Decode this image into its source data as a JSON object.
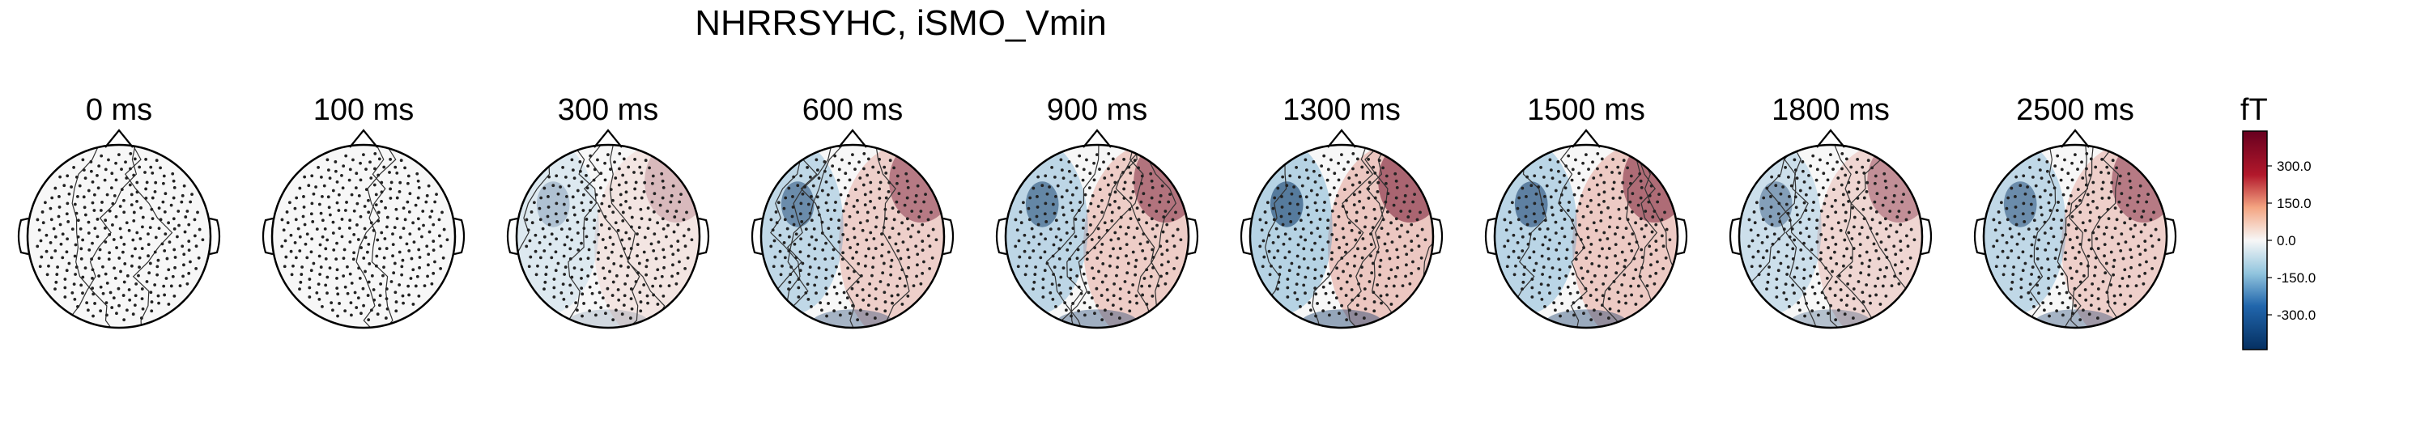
{
  "title": "NHRRSYHC, iSMO_Vmin",
  "panels": [
    {
      "label": "0 ms",
      "intensity": 0.02,
      "contours": 3
    },
    {
      "label": "100 ms",
      "intensity": 0.01,
      "contours": 2
    },
    {
      "label": "300 ms",
      "intensity": 0.35,
      "contours": 4
    },
    {
      "label": "600 ms",
      "intensity": 0.75,
      "contours": 5
    },
    {
      "label": "900 ms",
      "intensity": 0.8,
      "contours": 5
    },
    {
      "label": "1300 ms",
      "intensity": 0.9,
      "contours": 5
    },
    {
      "label": "1500 ms",
      "intensity": 0.85,
      "contours": 5
    },
    {
      "label": "1800 ms",
      "intensity": 0.6,
      "contours": 5
    },
    {
      "label": "2500 ms",
      "intensity": 0.75,
      "contours": 4
    }
  ],
  "colorbar": {
    "unit": "fT",
    "ticks": [
      "300.0",
      "150.0",
      "0.0",
      "-150.0",
      "-300.0"
    ],
    "colors": {
      "max": "#67001f",
      "pos": "#d6604d",
      "zero": "#f7f7f7",
      "neg": "#4393c3",
      "min": "#053061"
    }
  }
}
